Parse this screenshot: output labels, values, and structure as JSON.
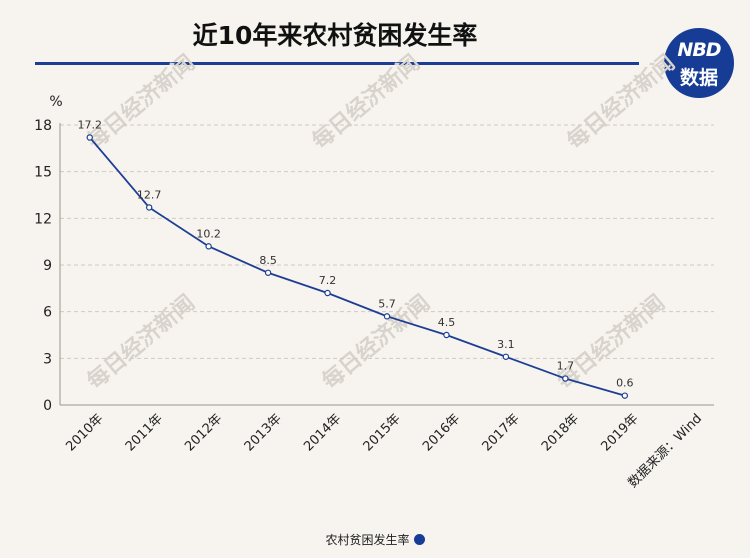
{
  "chart_data": {
    "type": "line",
    "title": "近10年来农村贫困发生率",
    "ylabel": "%",
    "categories": [
      "2010年",
      "2011年",
      "2012年",
      "2013年",
      "2014年",
      "2015年",
      "2016年",
      "2017年",
      "2018年",
      "2019年"
    ],
    "series": [
      {
        "name": "农村贫困发生率",
        "values": [
          17.2,
          12.7,
          10.2,
          8.5,
          7.2,
          5.7,
          4.5,
          3.1,
          1.7,
          0.6
        ],
        "color": "#1c3e94"
      }
    ],
    "yticks": [
      0,
      3,
      6,
      9,
      12,
      15,
      18
    ],
    "ylim": [
      0,
      18
    ],
    "grid": "horizontal-dashed",
    "legend": "bottom-center"
  },
  "source": "数据来源：Wind",
  "logo": {
    "brand": "NBD",
    "sub": "数据"
  },
  "watermark": "每日经济新闻",
  "colors": {
    "accent": "#1c3e94",
    "background": "#f7f4ef"
  }
}
